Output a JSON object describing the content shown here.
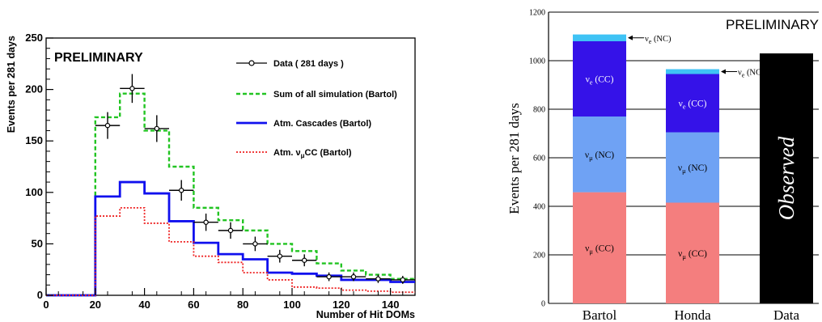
{
  "chart_data": [
    {
      "type": "histogram",
      "badge": "PRELIMINARY",
      "xlabel": "Number of Hit DOMs",
      "ylabel": "Events per 281 days",
      "xlim": [
        0,
        150
      ],
      "ylim": [
        0,
        250
      ],
      "x_ticks": [
        "0",
        "20",
        "40",
        "60",
        "80",
        "100",
        "120",
        "140"
      ],
      "y_ticks": [
        "0",
        "50",
        "100",
        "150",
        "200",
        "250"
      ],
      "bin_edges": [
        0,
        10,
        20,
        30,
        40,
        50,
        60,
        70,
        80,
        90,
        100,
        110,
        120,
        130,
        140,
        150
      ],
      "series": [
        {
          "name": "Sum of all simulation (Bartol)",
          "style": "dashed",
          "color": "#22c422",
          "values": [
            0,
            0,
            173,
            196,
            160,
            125,
            85,
            73,
            63,
            50,
            43,
            31,
            24,
            20,
            16
          ]
        },
        {
          "name": "Atm. Cascades (Bartol)",
          "style": "solid",
          "color": "#1010ee",
          "values": [
            0,
            0,
            96,
            110,
            99,
            72,
            51,
            40,
            35,
            22,
            21,
            19,
            15,
            15,
            13
          ]
        },
        {
          "name": "Atm. νμCC (Bartol)",
          "name_main": "Atm. ν",
          "name_sub": "μ",
          "name_tail": "CC (Bartol)",
          "style": "dotted",
          "color": "#ee2222",
          "values": [
            0,
            0,
            77,
            85,
            70,
            52,
            38,
            32,
            22,
            15,
            8,
            7,
            5,
            4,
            3
          ]
        }
      ],
      "data_points": {
        "name": "Data ( 281 days )",
        "x": [
          25,
          35,
          45,
          55,
          65,
          75,
          85,
          95,
          105,
          115,
          125,
          135,
          145
        ],
        "y": [
          165,
          201,
          162,
          102,
          71,
          63,
          50,
          38,
          34,
          18,
          18,
          16,
          15
        ],
        "yerr": [
          13,
          14,
          13,
          10,
          8.4,
          8,
          7,
          6.2,
          5.8,
          4.2,
          4.2,
          4,
          3.9
        ],
        "xerr": 5
      }
    },
    {
      "type": "stacked-bar",
      "badge": "PRELIMINARY",
      "ylabel": "Events per 281 days",
      "ylim": [
        0,
        1200
      ],
      "y_ticks": [
        "0",
        "200",
        "400",
        "600",
        "800",
        "1000",
        "1200"
      ],
      "categories": [
        "Bartol",
        "Honda",
        "Data"
      ],
      "stacks": [
        {
          "category": "Bartol",
          "segments": [
            {
              "label_main": "ν",
              "label_sub": "μ",
              "label_tail": " (CC)",
              "value": 458,
              "color": "#f47e7e"
            },
            {
              "label_main": "ν",
              "label_sub": "μ",
              "label_tail": " (NC)",
              "value": 312,
              "color": "#6fa2f4"
            },
            {
              "label_main": "ν",
              "label_sub": "e",
              "label_tail": " (CC)",
              "value": 310,
              "color": "#3512e8"
            },
            {
              "label_main": "ν",
              "label_sub": "e",
              "label_tail": " (NC)",
              "value": 28,
              "color": "#3fc3f5",
              "outside_label": true
            }
          ]
        },
        {
          "category": "Honda",
          "segments": [
            {
              "label_main": "ν",
              "label_sub": "μ",
              "label_tail": " (CC)",
              "value": 415,
              "color": "#f47e7e"
            },
            {
              "label_main": "ν",
              "label_sub": "μ",
              "label_tail": " (NC)",
              "value": 290,
              "color": "#6fa2f4"
            },
            {
              "label_main": "ν",
              "label_sub": "e",
              "label_tail": " (CC)",
              "value": 240,
              "color": "#3512e8"
            },
            {
              "label_main": "ν",
              "label_sub": "e",
              "label_tail": " (NC)",
              "value": 20,
              "color": "#3fc3f5",
              "outside_label": true
            }
          ]
        },
        {
          "category": "Data",
          "segments": [
            {
              "label_main": "Observed",
              "label_sub": "",
              "label_tail": "",
              "value": 1030,
              "color": "#000000",
              "vertical_label": true
            }
          ]
        }
      ]
    }
  ]
}
